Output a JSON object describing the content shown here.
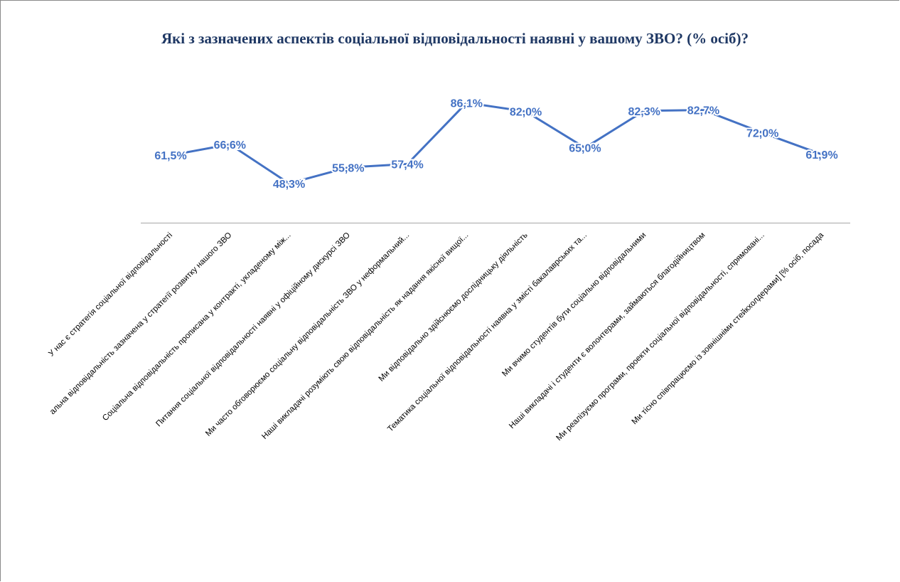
{
  "chart_data": {
    "type": "line",
    "title": "Які з зазначених аспектів соціальної відповідальності наявні у вашому ЗВО? (% осіб)?",
    "categories": [
      "У нас є стратегія соціальної відповідальності",
      "альна відповідальність зазначена у стратегії розвитку нашого  ЗВО",
      "Соціальна відповідальність прописана у контракті, укладеному між...",
      "Питання соціальної відповідальності наявні у офіційному дискурсі  ЗВО",
      "Ми часто обговорюємо соціальну відповідальність  ЗВО у неформальний...",
      "Наші викладачі розуміють свою відповідальність як надання якісної вищої...",
      "Ми відповідально здійснюємо дослідницьку діяльність",
      "Тематика соціальної відповідальності наявна у змісті бакалаврських та...",
      "Ми вчимо студентів бути соціально відповідальними",
      "Наші викладачі і студенти є волонтерами, займаються благодійництвом",
      "Ми реалізуємо програми, проекти соціальної відповідальності, спрямовані...",
      "Ми тісно співпрацюємо із зовнішніми стейкхолдерами] [% осіб, посада"
    ],
    "values": [
      61.5,
      66.6,
      48.3,
      55.8,
      57.4,
      86.1,
      82.0,
      65.0,
      82.3,
      82.7,
      72.0,
      61.9
    ],
    "labels": [
      "61,5%",
      "66,6%",
      "48,3%",
      "55,8%",
      "57,4%",
      "86,1%",
      "82,0%",
      "65,0%",
      "82,3%",
      "82,7%",
      "72,0%",
      "61,9%"
    ],
    "line_color": "#4472c4",
    "title_color": "#1f3864",
    "grid": false,
    "legend": "none"
  }
}
